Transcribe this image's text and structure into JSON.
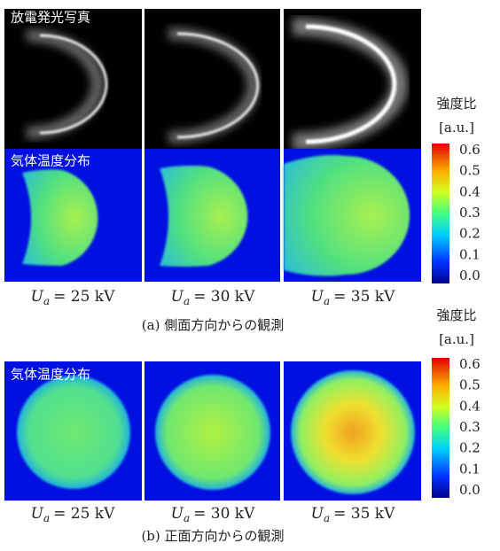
{
  "panel_a": {
    "photo_label": "放電発光写真",
    "temp_label": "気体温度分布",
    "conditions": [
      {
        "symbol": "U",
        "subscript": "a",
        "rest": "= 25 kV"
      },
      {
        "symbol": "U",
        "subscript": "a",
        "rest": "= 30 kV"
      },
      {
        "symbol": "U",
        "subscript": "a",
        "rest": "= 35 kV"
      }
    ],
    "caption": "(a) 側面方向からの観測"
  },
  "panel_b": {
    "temp_label": "気体温度分布",
    "conditions": [
      {
        "symbol": "U",
        "subscript": "a",
        "rest": "= 25 kV"
      },
      {
        "symbol": "U",
        "subscript": "a",
        "rest": "= 30 kV"
      },
      {
        "symbol": "U",
        "subscript": "a",
        "rest": "= 35 kV"
      }
    ],
    "caption": "(b) 正面方向からの観測"
  },
  "colorbar_a": {
    "title": "強度比",
    "unit": "[a.u.]",
    "ticks": [
      "0.6",
      "0.5",
      "0.4",
      "0.3",
      "0.2",
      "0.1",
      "0.0"
    ]
  },
  "colorbar_b": {
    "title": "強度比",
    "unit": "[a.u.]",
    "ticks": [
      "0.6",
      "0.5",
      "0.4",
      "0.3",
      "0.2",
      "0.1",
      "0.0"
    ]
  }
}
